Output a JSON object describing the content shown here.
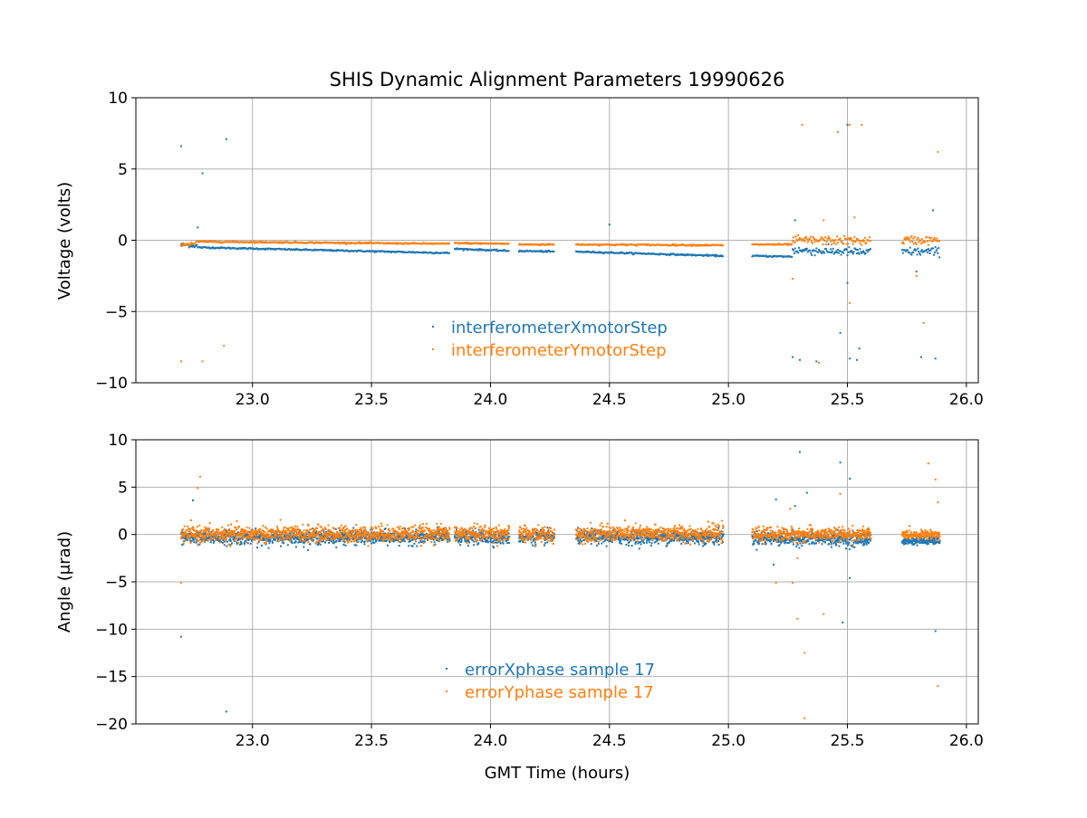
{
  "chart_data": [
    {
      "type": "scatter",
      "title": "SHIS Dynamic Alignment Parameters 19990626",
      "xlabel": "",
      "ylabel": "Voltage (volts)",
      "xlim": [
        22.51,
        26.05
      ],
      "ylim": [
        -10,
        10
      ],
      "xticks": [
        "23.0",
        "23.5",
        "24.0",
        "24.5",
        "25.0",
        "25.5",
        "26.0"
      ],
      "yticks": [
        "10",
        "5",
        "0",
        "−5",
        "−10"
      ],
      "ytick_values": [
        10,
        5,
        0,
        -5,
        -10
      ],
      "grid": true,
      "legend_position": "lower-center",
      "series": [
        {
          "name": "interferometerXmotorStep",
          "color": "#1f77b4",
          "segments": [
            [
              22.7,
              22.77,
              -0.3,
              -0.4,
              0.15
            ],
            [
              22.77,
              23.83,
              -0.5,
              -0.9,
              0.05
            ],
            [
              23.85,
              24.08,
              -0.6,
              -0.75,
              0.05
            ],
            [
              24.12,
              24.27,
              -0.75,
              -0.8,
              0.05
            ],
            [
              24.36,
              24.98,
              -0.8,
              -1.1,
              0.05
            ],
            [
              25.1,
              25.27,
              -1.1,
              -1.15,
              0.05
            ],
            [
              25.27,
              25.6,
              -0.7,
              -0.85,
              0.3
            ],
            [
              25.73,
              25.89,
              -0.8,
              -0.8,
              0.3
            ]
          ],
          "outliers": [
            [
              22.7,
              6.6
            ],
            [
              22.79,
              4.7
            ],
            [
              22.89,
              7.1
            ],
            [
              22.77,
              0.9
            ],
            [
              24.5,
              1.1
            ],
            [
              25.27,
              -8.2
            ],
            [
              25.3,
              -8.4
            ],
            [
              25.37,
              -8.5
            ],
            [
              25.47,
              -6.5
            ],
            [
              25.5,
              8.1
            ],
            [
              25.51,
              -8.3
            ],
            [
              25.54,
              -8.4
            ],
            [
              25.55,
              -7.6
            ],
            [
              25.81,
              -8.2
            ],
            [
              25.87,
              -8.3
            ],
            [
              25.5,
              -3.0
            ],
            [
              25.79,
              -2.2
            ],
            [
              25.86,
              2.1
            ],
            [
              25.28,
              1.4
            ]
          ]
        },
        {
          "name": "interferometerYmotorStep",
          "color": "#ff7f0e",
          "segments": [
            [
              22.7,
              22.77,
              -0.3,
              -0.2,
              0.15
            ],
            [
              22.77,
              23.83,
              -0.1,
              -0.25,
              0.05
            ],
            [
              23.85,
              24.08,
              -0.2,
              -0.25,
              0.05
            ],
            [
              24.12,
              24.27,
              -0.3,
              -0.3,
              0.05
            ],
            [
              24.36,
              24.98,
              -0.3,
              -0.35,
              0.05
            ],
            [
              25.1,
              25.27,
              -0.3,
              -0.3,
              0.05
            ],
            [
              25.27,
              25.6,
              0.0,
              -0.05,
              0.3
            ],
            [
              25.73,
              25.89,
              0.0,
              0.0,
              0.3
            ]
          ],
          "outliers": [
            [
              22.7,
              -8.5
            ],
            [
              22.79,
              -8.5
            ],
            [
              22.88,
              -7.4
            ],
            [
              25.31,
              8.1
            ],
            [
              25.46,
              7.6
            ],
            [
              25.51,
              8.1
            ],
            [
              25.56,
              8.1
            ],
            [
              25.88,
              6.2
            ],
            [
              25.38,
              -8.6
            ],
            [
              25.51,
              -4.4
            ],
            [
              25.82,
              -5.8
            ],
            [
              25.27,
              -2.7
            ],
            [
              25.79,
              -2.5
            ],
            [
              25.4,
              1.4
            ],
            [
              25.53,
              1.6
            ]
          ]
        }
      ]
    },
    {
      "type": "scatter",
      "title": "",
      "xlabel": "GMT Time (hours)",
      "ylabel": "Angle (μrad)",
      "xlim": [
        22.51,
        26.05
      ],
      "ylim": [
        -20,
        10
      ],
      "xticks": [
        "23.0",
        "23.5",
        "24.0",
        "24.5",
        "25.0",
        "25.5",
        "26.0"
      ],
      "yticks": [
        "10",
        "5",
        "0",
        "−5",
        "−10",
        "−15",
        "−20"
      ],
      "ytick_values": [
        10,
        5,
        0,
        -5,
        -10,
        -15,
        -20
      ],
      "grid": true,
      "legend_position": "lower-center",
      "series": [
        {
          "name": "errorXphase sample 17",
          "color": "#1f77b4",
          "segments": [
            [
              22.7,
              23.83,
              -0.3,
              -0.3,
              0.6
            ],
            [
              23.85,
              24.08,
              -0.3,
              -0.3,
              0.6
            ],
            [
              24.12,
              24.27,
              -0.3,
              -0.3,
              0.6
            ],
            [
              24.36,
              24.98,
              -0.3,
              -0.3,
              0.6
            ],
            [
              25.1,
              25.6,
              -0.4,
              -0.5,
              0.6
            ],
            [
              25.73,
              25.89,
              -0.7,
              -0.7,
              0.3
            ]
          ],
          "outliers": [
            [
              22.7,
              -10.8
            ],
            [
              22.75,
              3.6
            ],
            [
              22.89,
              -18.7
            ],
            [
              25.3,
              8.7
            ],
            [
              25.33,
              4.4
            ],
            [
              25.47,
              7.6
            ],
            [
              25.48,
              -9.3
            ],
            [
              25.51,
              5.9
            ],
            [
              25.51,
              -4.6
            ],
            [
              25.87,
              -10.2
            ],
            [
              25.2,
              3.7
            ],
            [
              25.19,
              -3.2
            ],
            [
              25.28,
              3.0
            ]
          ]
        },
        {
          "name": "errorYphase sample 17",
          "color": "#ff7f0e",
          "segments": [
            [
              22.7,
              23.83,
              0.0,
              0.1,
              0.7
            ],
            [
              23.85,
              24.08,
              0.1,
              0.1,
              0.7
            ],
            [
              24.12,
              24.27,
              0.0,
              0.0,
              0.7
            ],
            [
              24.36,
              24.98,
              0.1,
              0.1,
              0.7
            ],
            [
              25.1,
              25.6,
              0.0,
              0.0,
              0.6
            ],
            [
              25.73,
              25.89,
              0.0,
              0.0,
              0.35
            ]
          ],
          "outliers": [
            [
              22.7,
              -5.1
            ],
            [
              22.77,
              4.9
            ],
            [
              22.78,
              6.1
            ],
            [
              25.32,
              -19.4
            ],
            [
              25.32,
              -12.5
            ],
            [
              25.29,
              -8.9
            ],
            [
              25.4,
              -8.4
            ],
            [
              25.47,
              4.3
            ],
            [
              25.84,
              7.5
            ],
            [
              25.87,
              5.8
            ],
            [
              25.88,
              3.4
            ],
            [
              25.88,
              -16.0
            ],
            [
              25.2,
              -5.1
            ],
            [
              25.27,
              -5.1
            ],
            [
              25.26,
              2.7
            ],
            [
              25.29,
              -2.5
            ]
          ]
        }
      ]
    }
  ]
}
